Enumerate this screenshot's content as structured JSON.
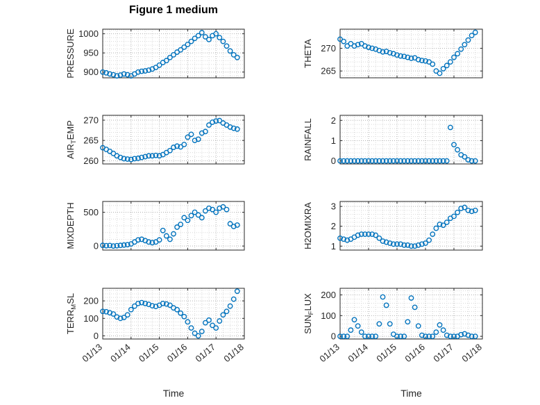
{
  "figure": {
    "title": "Figure 1 medium",
    "accent_color": "#0072BD",
    "axis_color": "#262626"
  },
  "x_axis": {
    "label": "Time",
    "lim": [
      13,
      18
    ],
    "ticks": [
      13,
      14,
      15,
      16,
      17,
      18
    ],
    "tick_labels": [
      "01/13",
      "01/14",
      "01/15",
      "01/16",
      "01/17",
      "01/18"
    ]
  },
  "x_values": [
    13,
    13.125,
    13.25,
    13.375,
    13.5,
    13.625,
    13.75,
    13.875,
    14,
    14.125,
    14.25,
    14.375,
    14.5,
    14.625,
    14.75,
    14.875,
    15,
    15.125,
    15.25,
    15.375,
    15.5,
    15.625,
    15.75,
    15.875,
    16,
    16.125,
    16.25,
    16.375,
    16.5,
    16.625,
    16.75,
    16.875,
    17,
    17.125,
    17.25,
    17.375,
    17.5,
    17.625,
    17.75
  ],
  "chart_data": [
    {
      "type": "scatter",
      "marker": "o",
      "name": "PRESSURE",
      "ylabel": "PRESSURE",
      "yticks": [
        900,
        950,
        1000
      ],
      "ylim": [
        885,
        1012
      ],
      "x_ref": "x_values",
      "y": [
        900,
        898,
        895,
        893,
        890,
        892,
        895,
        893,
        890,
        895,
        900,
        902,
        903,
        905,
        908,
        912,
        918,
        925,
        930,
        938,
        945,
        952,
        958,
        965,
        972,
        980,
        988,
        995,
        1003,
        992,
        985,
        995,
        1000,
        990,
        980,
        968,
        955,
        945,
        938
      ]
    },
    {
      "type": "scatter",
      "marker": "o",
      "name": "THETA",
      "ylabel": "THETA",
      "yticks": [
        265,
        270
      ],
      "ylim": [
        263.5,
        274.2
      ],
      "x_ref": "x_values",
      "y": [
        272,
        271.5,
        270.5,
        271,
        270.5,
        270.8,
        271,
        270.5,
        270.2,
        270,
        269.8,
        269.5,
        269.2,
        269.3,
        269,
        268.8,
        268.5,
        268.3,
        268.2,
        268,
        267.8,
        267.9,
        267.5,
        267.3,
        267.2,
        267,
        266.5,
        265,
        264.5,
        265.5,
        266.2,
        267,
        268,
        268.8,
        269.8,
        270.8,
        271.8,
        272.8,
        273.5
      ]
    },
    {
      "type": "scatter",
      "marker": "o",
      "name": "AIR_TEMP",
      "ylabel": "AIR_{T}EMP",
      "yticks": [
        260,
        265,
        270
      ],
      "ylim": [
        259.2,
        271.2
      ],
      "x_ref": "x_values",
      "y": [
        263.2,
        262.8,
        262.3,
        261.8,
        261.2,
        260.8,
        260.5,
        260.4,
        260.3,
        260.5,
        260.6,
        260.8,
        261,
        261.2,
        261.2,
        261.3,
        261.2,
        261.5,
        262,
        262.5,
        263.3,
        263.6,
        263.4,
        264,
        265.8,
        266.5,
        265,
        265.3,
        266.8,
        267.2,
        268.8,
        269.5,
        269.8,
        269.9,
        269.3,
        268.8,
        268.3,
        268,
        267.8
      ]
    },
    {
      "type": "scatter",
      "marker": "o",
      "name": "RAINFALL",
      "ylabel": "RAINFALL",
      "yticks": [
        0,
        1,
        2
      ],
      "ylim": [
        -0.15,
        2.25
      ],
      "x_ref": "x_values",
      "y": [
        0,
        0,
        0,
        0,
        0,
        0,
        0,
        0,
        0,
        0,
        0,
        0,
        0,
        0,
        0,
        0,
        0,
        0,
        0,
        0,
        0,
        0,
        0,
        0,
        0,
        0,
        0,
        0,
        0,
        0,
        0,
        1.65,
        0.8,
        0.55,
        0.3,
        0.2,
        0.05,
        0,
        0
      ]
    },
    {
      "type": "scatter",
      "marker": "o",
      "name": "MIXDEPTH",
      "ylabel": "MIXDEPTH",
      "yticks": [
        0,
        500
      ],
      "ylim": [
        -60,
        660
      ],
      "x_ref": "x_values",
      "y": [
        10,
        5,
        8,
        0,
        5,
        10,
        15,
        20,
        30,
        60,
        90,
        100,
        80,
        60,
        50,
        60,
        90,
        230,
        150,
        100,
        180,
        280,
        320,
        420,
        380,
        450,
        500,
        460,
        420,
        520,
        560,
        540,
        500,
        560,
        580,
        540,
        330,
        290,
        310
      ]
    },
    {
      "type": "scatter",
      "marker": "o",
      "name": "H2OMIXRA",
      "ylabel": "H2OMIXRA",
      "yticks": [
        1,
        2,
        3
      ],
      "ylim": [
        0.8,
        3.25
      ],
      "x_ref": "x_values",
      "y": [
        1.4,
        1.35,
        1.3,
        1.35,
        1.45,
        1.55,
        1.6,
        1.6,
        1.6,
        1.6,
        1.55,
        1.4,
        1.25,
        1.2,
        1.15,
        1.1,
        1.1,
        1.1,
        1.05,
        1.05,
        1,
        1,
        1.05,
        1.1,
        1.15,
        1.3,
        1.6,
        1.9,
        2.1,
        2.05,
        2.2,
        2.4,
        2.5,
        2.7,
        2.9,
        2.95,
        2.8,
        2.75,
        2.8
      ]
    },
    {
      "type": "scatter",
      "marker": "o",
      "name": "TERR_MSL",
      "ylabel": "TERR_{M}SL",
      "yticks": [
        0,
        100,
        200
      ],
      "ylim": [
        -18,
        272
      ],
      "x_ref": "x_values",
      "y": [
        140,
        138,
        132,
        125,
        108,
        100,
        105,
        120,
        150,
        170,
        185,
        190,
        185,
        180,
        172,
        168,
        175,
        185,
        182,
        175,
        160,
        150,
        130,
        110,
        80,
        45,
        15,
        0,
        25,
        75,
        90,
        60,
        45,
        85,
        120,
        140,
        170,
        210,
        255
      ]
    },
    {
      "type": "scatter",
      "marker": "o",
      "name": "SUN_FLUX",
      "ylabel": "SUN_{F}LUX",
      "yticks": [
        0,
        100,
        200
      ],
      "ylim": [
        -13,
        232
      ],
      "x_ref": "x_values",
      "y": [
        0,
        0,
        0,
        30,
        80,
        50,
        20,
        0,
        0,
        0,
        0,
        60,
        190,
        150,
        60,
        10,
        0,
        0,
        0,
        70,
        185,
        140,
        50,
        5,
        0,
        0,
        0,
        20,
        55,
        30,
        5,
        0,
        0,
        0,
        8,
        12,
        5,
        0,
        0
      ]
    }
  ]
}
